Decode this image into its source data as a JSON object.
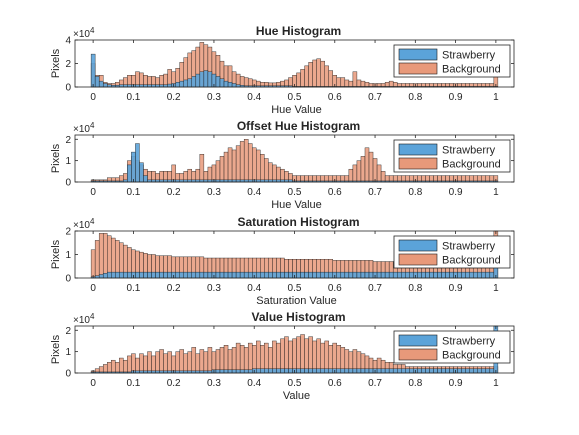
{
  "colors": {
    "strawberry": "#5ba3d9",
    "background": "#e8997a",
    "axis": "#262626",
    "edge": "#1a1a1a"
  },
  "legend": {
    "strawberry": "Strawberry",
    "background": "Background"
  },
  "chart_data": [
    {
      "type": "bar",
      "title": "Hue Histogram",
      "xlabel": "Hue Value",
      "ylabel": "Pixels",
      "exponent_label": "×10",
      "exponent": "4",
      "xlim": [
        0,
        1
      ],
      "ylim": [
        0,
        4
      ],
      "xticks": [
        0,
        0.1,
        0.2,
        0.3,
        0.4,
        0.5,
        0.6,
        0.7,
        0.8,
        0.9,
        1
      ],
      "xticklabels": [
        "0",
        "0.1",
        "0.2",
        "0.3",
        "0.4",
        "0.5",
        "0.6",
        "0.7",
        "0.8",
        "0.9",
        "1"
      ],
      "yticks": [
        0,
        2,
        4
      ],
      "yticklabels": [
        "0",
        "2",
        "4"
      ],
      "bin_width": 0.01,
      "series": [
        {
          "name": "Strawberry",
          "values": [
            2.8,
            0.9,
            0.5,
            0.3,
            0.2,
            0.15,
            0.15,
            0.2,
            0.2,
            0.2,
            0.2,
            0.2,
            0.2,
            0.2,
            0.2,
            0.2,
            0.2,
            0.2,
            0.2,
            0.25,
            0.3,
            0.4,
            0.5,
            0.6,
            0.7,
            0.9,
            1.1,
            1.3,
            1.4,
            1.3,
            1.1,
            0.9,
            0.7,
            0.5,
            0.4,
            0.3,
            0.2,
            0.15,
            0.1,
            0.1,
            0.1,
            0.1,
            0.1,
            0.1,
            0.1,
            0.1,
            0.1,
            0.1,
            0.1,
            0.1,
            0.05,
            0.05,
            0.05,
            0.05,
            0.05,
            0.05,
            0.05,
            0.05,
            0.05,
            0.05,
            0.05,
            0.05,
            0.05,
            0.05,
            0.05,
            0.05,
            0.05,
            0.05,
            0.05,
            0.05,
            0.05,
            0.05,
            0.05,
            0.05,
            0.05,
            0.05,
            0.05,
            0.05,
            0.05,
            0.05,
            0.05,
            0.05,
            0.05,
            0.05,
            0.05,
            0.05,
            0.05,
            0.05,
            0.05,
            0.05,
            0.05,
            0.05,
            0.05,
            0.05,
            0.05,
            0.05,
            0.05,
            0.05,
            0.05,
            0.05,
            0.05
          ]
        },
        {
          "name": "Background",
          "values": [
            2.0,
            1.0,
            1.0,
            0.4,
            0.3,
            0.3,
            0.4,
            0.6,
            0.8,
            1.0,
            1.0,
            1.3,
            1.2,
            1.0,
            0.9,
            0.9,
            0.8,
            1.0,
            1.1,
            1.5,
            1.3,
            1.6,
            2.1,
            2.5,
            2.9,
            3.1,
            3.4,
            3.8,
            3.6,
            3.4,
            3.0,
            2.7,
            2.2,
            1.8,
            1.8,
            1.3,
            1.1,
            0.9,
            0.8,
            0.7,
            0.6,
            0.5,
            0.4,
            0.4,
            0.35,
            0.35,
            0.4,
            0.5,
            0.6,
            0.8,
            1.0,
            1.2,
            1.5,
            1.8,
            2.1,
            2.3,
            2.4,
            2.2,
            1.8,
            1.4,
            1.0,
            0.8,
            0.8,
            0.6,
            0.5,
            1.3,
            0.6,
            0.5,
            0.4,
            0.3,
            0.3,
            0.3,
            0.3,
            0.4,
            0.5,
            0.4,
            0.3,
            0.3,
            0.3,
            0.3,
            0.3,
            0.3,
            0.3,
            0.3,
            0.3,
            0.3,
            0.3,
            0.3,
            0.3,
            0.3,
            0.3,
            0.3,
            0.3,
            0.3,
            0.3,
            0.3,
            0.3,
            0.3,
            0.3,
            0.3,
            0.9
          ]
        }
      ]
    },
    {
      "type": "bar",
      "title": "Offset Hue Histogram",
      "xlabel": "Hue Value",
      "ylabel": "Pixels",
      "exponent_label": "×10",
      "exponent": "4",
      "xlim": [
        0,
        1
      ],
      "ylim": [
        0,
        2.2
      ],
      "xticks": [
        0,
        0.1,
        0.2,
        0.3,
        0.4,
        0.5,
        0.6,
        0.7,
        0.8,
        0.9,
        1
      ],
      "xticklabels": [
        "0",
        "0.1",
        "0.2",
        "0.3",
        "0.4",
        "0.5",
        "0.6",
        "0.7",
        "0.8",
        "0.9",
        "1"
      ],
      "yticks": [
        0,
        1,
        2
      ],
      "yticklabels": [
        "0",
        "1",
        "2"
      ],
      "bin_width": 0.01,
      "series": [
        {
          "name": "Strawberry",
          "values": [
            0.05,
            0.05,
            0.05,
            0.05,
            0.05,
            0.05,
            0.05,
            0.05,
            0.1,
            0.8,
            1.4,
            1.8,
            0.9,
            0.3,
            0.1,
            0.1,
            0.1,
            0.1,
            0.1,
            0.1,
            0.1,
            0.1,
            0.1,
            0.1,
            0.1,
            0.1,
            0.1,
            0.1,
            0.1,
            0.1,
            0.1,
            0.1,
            0.1,
            0.1,
            0.1,
            0.1,
            0.1,
            0.1,
            0.1,
            0.1,
            0.1,
            0.1,
            0.1,
            0.1,
            0.1,
            0.1,
            0.1,
            0.1,
            0.1,
            0.1,
            0.05,
            0.05,
            0.05,
            0.05,
            0.05,
            0.05,
            0.05,
            0.05,
            0.05,
            0.05,
            0.05,
            0.05,
            0.05,
            0.05,
            0.05,
            0.05,
            0.05,
            0.05,
            0.05,
            0.05,
            0.05,
            0.05,
            0.05,
            0.05,
            0.05,
            0.05,
            0.05,
            0.05,
            0.05,
            0.05,
            0.05,
            0.05,
            0.05,
            0.05,
            0.05,
            0.05,
            0.05,
            0.05,
            0.05,
            0.05,
            0.05,
            0.05,
            0.05,
            0.05,
            0.05,
            0.05,
            0.05,
            0.05,
            0.05,
            0.05,
            0.05
          ]
        },
        {
          "name": "Background",
          "values": [
            0.1,
            0.1,
            0.1,
            0.1,
            0.2,
            0.2,
            0.2,
            0.3,
            0.4,
            1.0,
            1.2,
            1.0,
            0.8,
            0.6,
            0.5,
            0.5,
            0.4,
            0.5,
            0.5,
            0.5,
            0.8,
            0.4,
            0.4,
            0.5,
            0.6,
            0.5,
            0.6,
            1.3,
            0.5,
            0.7,
            0.8,
            1.0,
            1.2,
            1.4,
            1.6,
            1.5,
            1.7,
            1.9,
            2.0,
            1.8,
            1.6,
            1.5,
            1.3,
            1.1,
            0.9,
            0.8,
            0.7,
            0.6,
            0.5,
            0.4,
            0.3,
            0.3,
            0.3,
            0.3,
            0.3,
            0.3,
            0.3,
            0.3,
            0.3,
            0.3,
            0.3,
            0.3,
            0.3,
            0.3,
            0.6,
            0.8,
            1.0,
            1.2,
            1.6,
            1.4,
            1.1,
            0.8,
            0.5,
            0.3,
            0.3,
            0.3,
            0.3,
            0.3,
            0.3,
            0.3,
            0.3,
            0.3,
            0.3,
            0.3,
            0.3,
            0.3,
            0.3,
            0.3,
            0.3,
            0.3,
            0.3,
            0.3,
            0.3,
            0.3,
            0.3,
            0.3,
            0.3,
            0.3,
            0.3,
            0.3,
            0.3
          ]
        }
      ]
    },
    {
      "type": "bar",
      "title": "Saturation Histogram",
      "xlabel": "Saturation Value",
      "ylabel": "Pixels",
      "exponent_label": "×10",
      "exponent": "4",
      "xlim": [
        0,
        1
      ],
      "ylim": [
        0,
        2
      ],
      "xticks": [
        0,
        0.1,
        0.2,
        0.3,
        0.4,
        0.5,
        0.6,
        0.7,
        0.8,
        0.9,
        1
      ],
      "xticklabels": [
        "0",
        "0.1",
        "0.2",
        "0.3",
        "0.4",
        "0.5",
        "0.6",
        "0.7",
        "0.8",
        "0.9",
        "1"
      ],
      "yticks": [
        0,
        1,
        2
      ],
      "yticklabels": [
        "0",
        "1",
        "2"
      ],
      "bin_width": 0.01,
      "series": [
        {
          "name": "Strawberry",
          "values": [
            0.05,
            0.1,
            0.15,
            0.2,
            0.25,
            0.25,
            0.25,
            0.25,
            0.25,
            0.25,
            0.25,
            0.25,
            0.25,
            0.25,
            0.25,
            0.25,
            0.25,
            0.25,
            0.25,
            0.25,
            0.25,
            0.25,
            0.25,
            0.25,
            0.25,
            0.25,
            0.25,
            0.25,
            0.25,
            0.25,
            0.25,
            0.25,
            0.25,
            0.25,
            0.25,
            0.25,
            0.25,
            0.25,
            0.25,
            0.25,
            0.25,
            0.25,
            0.25,
            0.25,
            0.25,
            0.25,
            0.25,
            0.25,
            0.25,
            0.25,
            0.25,
            0.25,
            0.25,
            0.25,
            0.25,
            0.25,
            0.25,
            0.25,
            0.25,
            0.25,
            0.25,
            0.25,
            0.25,
            0.25,
            0.25,
            0.25,
            0.25,
            0.25,
            0.25,
            0.25,
            0.25,
            0.25,
            0.25,
            0.25,
            0.25,
            0.25,
            0.25,
            0.25,
            0.25,
            0.25,
            0.25,
            0.25,
            0.25,
            0.25,
            0.25,
            0.25,
            0.25,
            0.25,
            0.25,
            0.25,
            0.25,
            0.25,
            0.25,
            0.25,
            0.25,
            0.25,
            0.25,
            0.25,
            0.25,
            0.25,
            0.8
          ]
        },
        {
          "name": "Background",
          "values": [
            1.2,
            1.6,
            1.9,
            1.9,
            1.8,
            1.7,
            1.6,
            1.5,
            1.4,
            1.3,
            1.2,
            1.15,
            1.1,
            1.05,
            1.0,
            1.0,
            0.95,
            0.95,
            0.95,
            0.95,
            0.9,
            0.9,
            0.9,
            0.9,
            0.9,
            0.9,
            0.9,
            0.9,
            0.85,
            0.85,
            0.85,
            0.85,
            0.85,
            0.85,
            0.85,
            0.85,
            0.85,
            0.85,
            0.85,
            0.85,
            0.85,
            0.85,
            0.85,
            0.85,
            0.85,
            0.85,
            0.85,
            0.85,
            0.8,
            0.8,
            0.8,
            0.8,
            0.8,
            0.8,
            0.8,
            0.8,
            0.8,
            0.8,
            0.8,
            0.8,
            0.75,
            0.75,
            0.75,
            0.75,
            0.75,
            0.75,
            0.75,
            0.75,
            0.75,
            0.75,
            0.7,
            0.7,
            0.7,
            0.7,
            0.7,
            0.7,
            0.7,
            0.7,
            0.7,
            0.7,
            0.7,
            0.7,
            0.7,
            0.7,
            0.7,
            0.7,
            0.7,
            0.7,
            0.7,
            0.7,
            0.7,
            0.7,
            0.7,
            0.7,
            0.7,
            0.7,
            0.7,
            0.7,
            0.7,
            0.7,
            2.1
          ]
        }
      ]
    },
    {
      "type": "bar",
      "title": "Value Histogram",
      "xlabel": "Value",
      "ylabel": "Pixels",
      "exponent_label": "×10",
      "exponent": "4",
      "xlim": [
        0,
        1
      ],
      "ylim": [
        0,
        2.2
      ],
      "xticks": [
        0,
        0.1,
        0.2,
        0.3,
        0.4,
        0.5,
        0.6,
        0.7,
        0.8,
        0.9,
        1
      ],
      "xticklabels": [
        "0",
        "0.1",
        "0.2",
        "0.3",
        "0.4",
        "0.5",
        "0.6",
        "0.7",
        "0.8",
        "0.9",
        "1"
      ],
      "yticks": [
        0,
        1,
        2
      ],
      "yticklabels": [
        "0",
        "1",
        "2"
      ],
      "bin_width": 0.01,
      "series": [
        {
          "name": "Strawberry",
          "values": [
            0.05,
            0.05,
            0.05,
            0.05,
            0.05,
            0.05,
            0.05,
            0.05,
            0.05,
            0.05,
            0.1,
            0.1,
            0.1,
            0.1,
            0.1,
            0.1,
            0.1,
            0.1,
            0.1,
            0.1,
            0.1,
            0.1,
            0.1,
            0.1,
            0.1,
            0.1,
            0.1,
            0.1,
            0.1,
            0.1,
            0.15,
            0.15,
            0.15,
            0.15,
            0.15,
            0.15,
            0.15,
            0.15,
            0.15,
            0.15,
            0.2,
            0.2,
            0.2,
            0.2,
            0.2,
            0.2,
            0.2,
            0.2,
            0.2,
            0.2,
            0.2,
            0.2,
            0.2,
            0.2,
            0.2,
            0.2,
            0.2,
            0.2,
            0.2,
            0.2,
            0.2,
            0.2,
            0.2,
            0.2,
            0.2,
            0.2,
            0.2,
            0.2,
            0.2,
            0.2,
            0.2,
            0.2,
            0.2,
            0.2,
            0.2,
            0.2,
            0.2,
            0.2,
            0.2,
            0.2,
            0.2,
            0.2,
            0.2,
            0.2,
            0.2,
            0.2,
            0.2,
            0.2,
            0.2,
            0.2,
            0.2,
            0.2,
            0.2,
            0.2,
            0.2,
            0.2,
            0.2,
            0.2,
            0.2,
            0.2,
            2.2
          ]
        },
        {
          "name": "Background",
          "values": [
            0.1,
            0.2,
            0.3,
            0.4,
            0.5,
            0.6,
            0.5,
            0.7,
            0.6,
            0.8,
            0.9,
            0.7,
            0.9,
            0.8,
            1.0,
            0.8,
            1.0,
            1.1,
            0.9,
            1.0,
            0.8,
            1.0,
            1.1,
            0.9,
            1.0,
            1.2,
            0.9,
            1.1,
            1.0,
            1.2,
            1.0,
            1.1,
            1.2,
            1.3,
            1.1,
            1.2,
            1.4,
            1.3,
            1.2,
            1.4,
            1.3,
            1.5,
            1.3,
            1.4,
            1.2,
            1.5,
            1.4,
            1.6,
            1.7,
            1.5,
            1.6,
            1.7,
            1.8,
            1.6,
            1.7,
            1.5,
            1.6,
            1.4,
            1.5,
            1.3,
            1.4,
            1.3,
            1.2,
            1.1,
            1.0,
            1.1,
            1.0,
            0.9,
            0.8,
            0.7,
            0.6,
            0.7,
            0.6,
            0.5,
            0.5,
            0.4,
            0.4,
            0.4,
            0.3,
            0.3,
            0.3,
            0.3,
            0.3,
            0.3,
            0.3,
            0.3,
            0.3,
            0.3,
            0.3,
            0.3,
            0.3,
            0.3,
            0.3,
            0.3,
            0.3,
            0.3,
            0.3,
            0.3,
            0.3,
            0.3,
            0.3
          ]
        }
      ]
    }
  ]
}
